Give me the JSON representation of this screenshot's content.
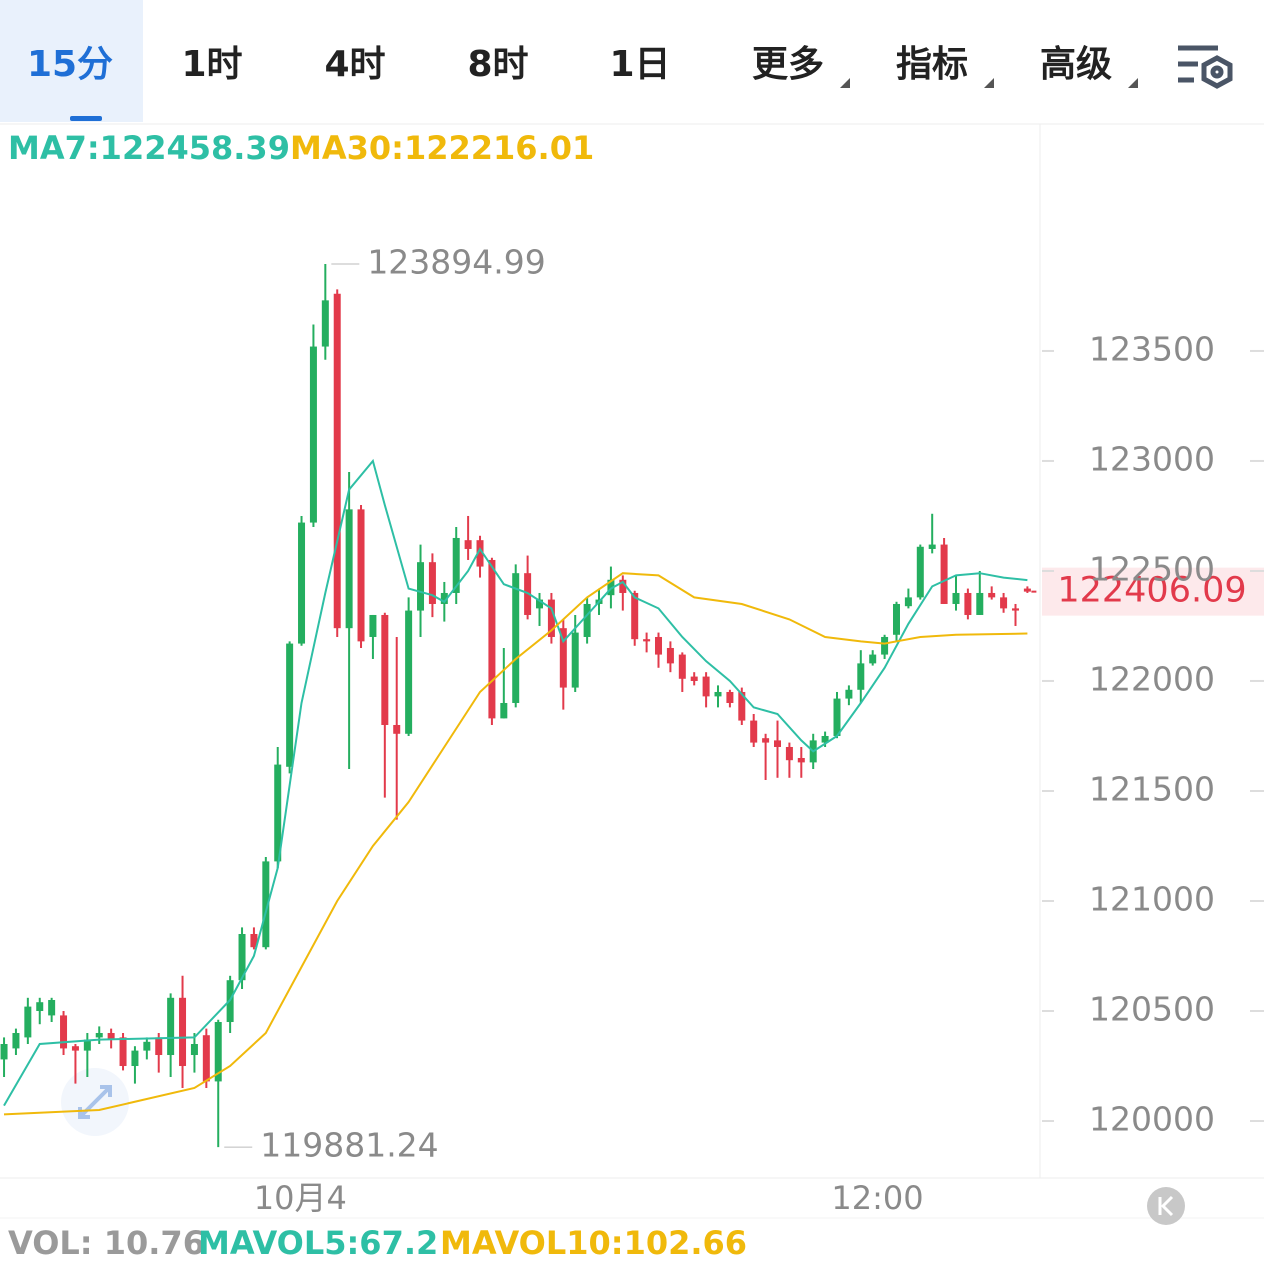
{
  "tabs": [
    "15分",
    "1时",
    "4时",
    "8时",
    "1日",
    "更多",
    "指标",
    "高级"
  ],
  "chart_data": {
    "type": "candlestick",
    "up_color": "#24ae5f",
    "down_color": "#e23a4b",
    "xlim": [
      -0.34,
      87.06
    ],
    "ylim": [
      119741,
      124527
    ],
    "yticks": [
      120000,
      120500,
      121000,
      121500,
      122000,
      122500,
      123000,
      123500
    ],
    "xticks": [
      {
        "value": 24.9,
        "label": "10月4"
      },
      {
        "value": 73.4,
        "label": "12:00"
      }
    ],
    "open": [
      120280,
      120330,
      120380,
      120500,
      120480,
      120480,
      120340,
      120320,
      120380,
      120400,
      120380,
      120250,
      120320,
      120380,
      120300,
      120560,
      120300,
      120390,
      120180,
      120450,
      120640,
      120850,
      120790,
      121180,
      121610,
      122170,
      122720,
      123520,
      123760,
      122240,
      122780,
      122200,
      122300,
      121800,
      121760,
      122320,
      122540,
      122350,
      122400,
      122640,
      122640,
      122550,
      121830,
      121900,
      122490,
      122330,
      122370,
      122240,
      121970,
      122200,
      122350,
      122390,
      122460,
      122400,
      122190,
      122200,
      122150,
      122120,
      122020,
      122020,
      121930,
      121950,
      121950,
      121820,
      121740,
      121730,
      121700,
      121650,
      121630,
      121720,
      121750,
      121920,
      121960,
      122080,
      122120,
      122210,
      122340,
      122380,
      122600,
      122620,
      122350,
      122400,
      122300,
      122400,
      122380,
      122330,
      122420
    ],
    "high": [
      120380,
      120420,
      120560,
      120560,
      120560,
      120500,
      120350,
      120400,
      120430,
      120420,
      120400,
      120340,
      120380,
      120400,
      120580,
      120660,
      120400,
      120420,
      120460,
      120660,
      120880,
      120880,
      121200,
      121700,
      122180,
      122750,
      123620,
      123894.99,
      123780,
      122950,
      122800,
      122300,
      122310,
      122200,
      122380,
      122620,
      122580,
      122450,
      122700,
      122750,
      122660,
      122560,
      122150,
      122530,
      122570,
      122400,
      122400,
      122280,
      122300,
      122380,
      122420,
      122520,
      122480,
      122410,
      122220,
      122220,
      122180,
      122130,
      122040,
      122040,
      121980,
      121960,
      121970,
      121850,
      121760,
      121820,
      121720,
      121700,
      121760,
      121770,
      121950,
      121980,
      122140,
      122140,
      122210,
      122360,
      122420,
      122620,
      122760,
      122650,
      122480,
      122420,
      122500,
      122430,
      122400,
      122350,
      122430
    ],
    "low": [
      120200,
      120300,
      120350,
      120440,
      120450,
      120300,
      120170,
      120200,
      120350,
      120330,
      120230,
      120170,
      120280,
      120220,
      120200,
      120150,
      120220,
      120150,
      119881.24,
      120400,
      120600,
      120780,
      120780,
      121150,
      121580,
      122160,
      122700,
      123460,
      122200,
      121600,
      122150,
      122100,
      121470,
      121370,
      121750,
      122200,
      122290,
      122270,
      122350,
      122550,
      122470,
      121800,
      121830,
      121880,
      122280,
      122250,
      122170,
      121870,
      121950,
      122170,
      122300,
      122330,
      122320,
      122160,
      122130,
      122060,
      122040,
      121950,
      121980,
      121880,
      121880,
      121880,
      121800,
      121700,
      121550,
      121560,
      121560,
      121560,
      121600,
      121700,
      121740,
      121890,
      121900,
      122070,
      122100,
      122180,
      122330,
      122370,
      122580,
      122350,
      122320,
      122280,
      122300,
      122370,
      122310,
      122250,
      122400
    ],
    "close": [
      120350,
      120400,
      120520,
      120540,
      120550,
      120330,
      120320,
      120370,
      120400,
      120370,
      120250,
      120320,
      120360,
      120300,
      120560,
      120250,
      120350,
      120180,
      120450,
      120640,
      120850,
      120790,
      121180,
      121620,
      122170,
      122720,
      123520,
      123730,
      122240,
      122780,
      122180,
      122300,
      121800,
      121760,
      122320,
      122540,
      122350,
      122400,
      122650,
      122600,
      122520,
      121830,
      121900,
      122490,
      122300,
      122370,
      122200,
      121970,
      122220,
      122350,
      122370,
      122460,
      122400,
      122190,
      122180,
      122120,
      122080,
      122010,
      122000,
      121930,
      121950,
      121900,
      121820,
      121720,
      121720,
      121700,
      121640,
      121630,
      121730,
      121750,
      121920,
      121960,
      122080,
      122120,
      122200,
      122350,
      122380,
      122610,
      122620,
      122350,
      122400,
      122300,
      122400,
      122380,
      122330,
      122320,
      122406.09
    ],
    "series": [
      {
        "label": "MA7:122458.39",
        "color": "#2ebfa5",
        "x": [
          0,
          3,
          8,
          16,
          19,
          21,
          23,
          25,
          27,
          29,
          31,
          32,
          34,
          36,
          37,
          39,
          40,
          42,
          44,
          46,
          47,
          49,
          51,
          52,
          53,
          55,
          57,
          59,
          61,
          63,
          65,
          67,
          68,
          70,
          72,
          74,
          76,
          78,
          80,
          82,
          84,
          86
        ],
        "values": [
          120070,
          120350,
          120370,
          120380,
          120550,
          120750,
          121150,
          121900,
          122400,
          122870,
          123000,
          122800,
          122420,
          122390,
          122360,
          122500,
          122600,
          122440,
          122400,
          122330,
          122180,
          122300,
          122420,
          122450,
          122380,
          122330,
          122200,
          122090,
          122000,
          121880,
          121850,
          121730,
          121680,
          121750,
          121900,
          122060,
          122260,
          122430,
          122480,
          122490,
          122470,
          122458.39
        ]
      },
      {
        "label": "MA30:122216.01",
        "color": "#f0b90b",
        "x": [
          0,
          8,
          16,
          19,
          22,
          25,
          28,
          31,
          34,
          37,
          40,
          43,
          46,
          49,
          52,
          55,
          58,
          62,
          66,
          69,
          72,
          74,
          77,
          80,
          86
        ],
        "values": [
          120030,
          120050,
          120150,
          120250,
          120400,
          120700,
          121000,
          121250,
          121450,
          121700,
          121950,
          122100,
          122230,
          122380,
          122490,
          122480,
          122380,
          122350,
          122280,
          122200,
          122180,
          122170,
          122200,
          122210,
          122216.01
        ]
      }
    ],
    "volume_texts": [
      {
        "text": "VOL: 10.76",
        "color": "#9a9a9a"
      },
      {
        "text": "MAVOL5:67.2",
        "color": "#2ebfa5"
      },
      {
        "text": "MAVOL10:102.66",
        "color": "#f0b90b"
      }
    ]
  }
}
